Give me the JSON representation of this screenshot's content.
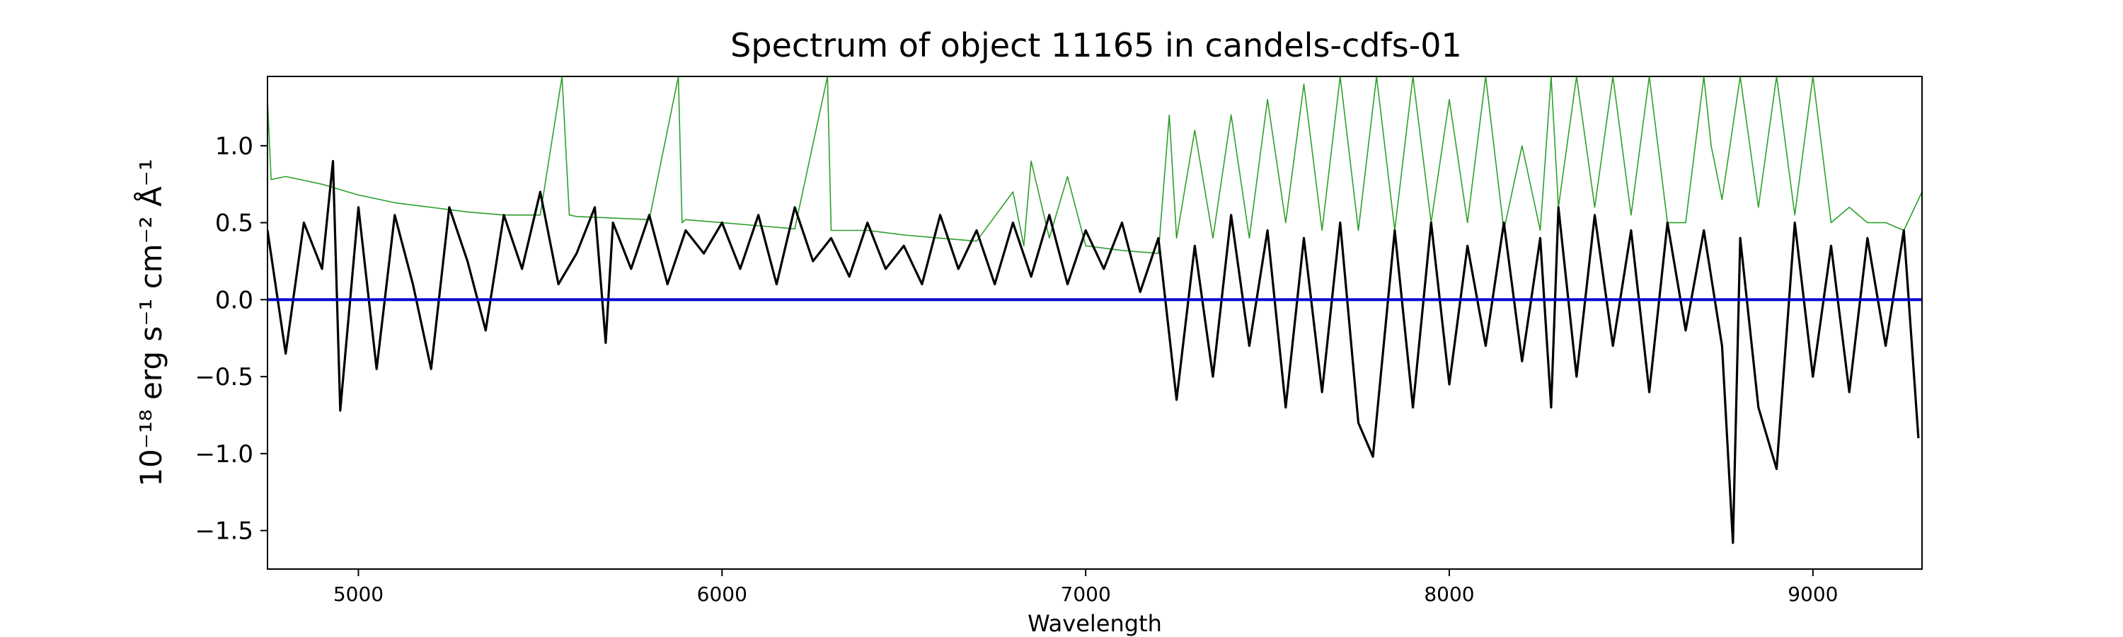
{
  "chart_data": {
    "type": "line",
    "title": "Spectrum of object 11165 in candels-cdfs-01",
    "xlabel": "Wavelength",
    "ylabel": "10⁻¹⁸ erg s⁻¹ cm⁻² Å⁻¹",
    "xlim": [
      4750,
      9300
    ],
    "ylim": [
      -1.75,
      1.45
    ],
    "x_ticks": [
      5000,
      6000,
      7000,
      8000,
      9000
    ],
    "y_ticks": [
      1.0,
      0.5,
      0.0,
      -0.5,
      -1.0,
      -1.5
    ],
    "y_tick_labels": [
      "1.0",
      "0.5",
      "0.0",
      "−0.5",
      "−1.0",
      "−1.5"
    ],
    "grid": false,
    "series": [
      {
        "color": "#000000",
        "role": "flux",
        "x": [
          4750,
          4800,
          4850,
          4900,
          4930,
          4950,
          5000,
          5050,
          5100,
          5150,
          5200,
          5250,
          5300,
          5350,
          5400,
          5450,
          5500,
          5550,
          5600,
          5650,
          5680,
          5700,
          5750,
          5800,
          5850,
          5900,
          5950,
          6000,
          6050,
          6100,
          6150,
          6200,
          6250,
          6300,
          6350,
          6400,
          6450,
          6500,
          6550,
          6600,
          6650,
          6700,
          6750,
          6800,
          6850,
          6900,
          6950,
          7000,
          7050,
          7100,
          7150,
          7200,
          7250,
          7300,
          7350,
          7400,
          7450,
          7500,
          7550,
          7600,
          7650,
          7700,
          7750,
          7790,
          7850,
          7900,
          7950,
          8000,
          8050,
          8100,
          8150,
          8200,
          8250,
          8280,
          8300,
          8350,
          8400,
          8450,
          8500,
          8550,
          8600,
          8650,
          8700,
          8750,
          8780,
          8800,
          8850,
          8900,
          8950,
          9000,
          9050,
          9100,
          9150,
          9200,
          9250,
          9290
        ],
        "y": [
          0.45,
          -0.35,
          0.5,
          0.2,
          0.9,
          -0.72,
          0.6,
          -0.45,
          0.55,
          0.1,
          -0.45,
          0.6,
          0.25,
          -0.2,
          0.55,
          0.2,
          0.7,
          0.1,
          0.3,
          0.6,
          -0.28,
          0.5,
          0.2,
          0.55,
          0.1,
          0.45,
          0.3,
          0.5,
          0.2,
          0.55,
          0.1,
          0.6,
          0.25,
          0.4,
          0.15,
          0.5,
          0.2,
          0.35,
          0.1,
          0.55,
          0.2,
          0.45,
          0.1,
          0.5,
          0.15,
          0.55,
          0.1,
          0.45,
          0.2,
          0.5,
          0.05,
          0.4,
          -0.65,
          0.35,
          -0.5,
          0.55,
          -0.3,
          0.45,
          -0.7,
          0.4,
          -0.6,
          0.5,
          -0.8,
          -1.02,
          0.45,
          -0.7,
          0.5,
          -0.55,
          0.35,
          -0.3,
          0.5,
          -0.4,
          0.4,
          -0.7,
          0.6,
          -0.5,
          0.55,
          -0.3,
          0.45,
          -0.6,
          0.5,
          -0.2,
          0.45,
          -0.3,
          -1.58,
          0.4,
          -0.7,
          -1.1,
          0.5,
          -0.5,
          0.35,
          -0.6,
          0.4,
          -0.3,
          0.45,
          -0.9
        ]
      },
      {
        "color": "#2ca02c",
        "role": "error",
        "x": [
          4750,
          4760,
          4800,
          4900,
          5000,
          5100,
          5200,
          5300,
          5400,
          5500,
          5560,
          5580,
          5600,
          5700,
          5800,
          5880,
          5890,
          5900,
          6000,
          6100,
          6200,
          6290,
          6300,
          6310,
          6400,
          6500,
          6600,
          6700,
          6800,
          6830,
          6850,
          6900,
          6950,
          7000,
          7100,
          7200,
          7230,
          7250,
          7300,
          7350,
          7400,
          7450,
          7500,
          7550,
          7600,
          7650,
          7700,
          7750,
          7800,
          7850,
          7900,
          7950,
          8000,
          8050,
          8100,
          8150,
          8200,
          8250,
          8280,
          8300,
          8350,
          8400,
          8450,
          8500,
          8550,
          8600,
          8650,
          8700,
          8720,
          8750,
          8800,
          8850,
          8900,
          8950,
          9000,
          9050,
          9100,
          9150,
          9200,
          9250,
          9300
        ],
        "y": [
          1.3,
          0.78,
          0.8,
          0.75,
          0.68,
          0.63,
          0.6,
          0.57,
          0.55,
          0.55,
          1.45,
          0.55,
          0.54,
          0.53,
          0.52,
          1.45,
          0.5,
          0.52,
          0.5,
          0.48,
          0.46,
          1.45,
          0.45,
          0.45,
          0.45,
          0.42,
          0.4,
          0.38,
          0.7,
          0.35,
          0.9,
          0.4,
          0.8,
          0.35,
          0.32,
          0.3,
          1.2,
          0.4,
          1.1,
          0.4,
          1.2,
          0.4,
          1.3,
          0.5,
          1.4,
          0.45,
          1.45,
          0.45,
          1.45,
          0.45,
          1.45,
          0.5,
          1.3,
          0.5,
          1.45,
          0.45,
          1.0,
          0.45,
          1.45,
          0.6,
          1.45,
          0.6,
          1.45,
          0.55,
          1.45,
          0.5,
          0.5,
          1.45,
          1.0,
          0.65,
          1.45,
          0.6,
          1.45,
          0.55,
          1.45,
          0.5,
          0.6,
          0.5,
          0.5,
          0.45,
          0.7
        ]
      },
      {
        "color": "#0000cc",
        "role": "zero",
        "x": [
          4750,
          9300
        ],
        "y": [
          0.0,
          0.0
        ]
      }
    ]
  }
}
